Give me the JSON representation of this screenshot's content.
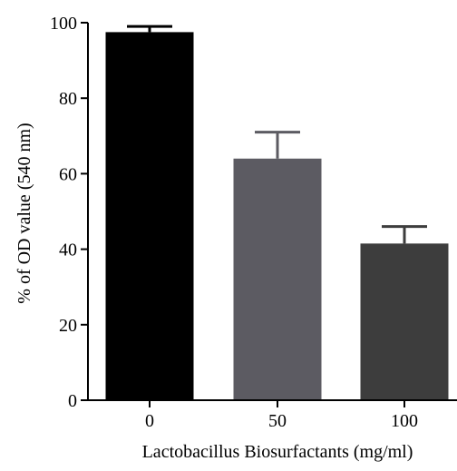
{
  "chart_data": {
    "type": "bar",
    "categories": [
      "0",
      "50",
      "100"
    ],
    "values": [
      97.5,
      64,
      41.5
    ],
    "errors": [
      1.5,
      7,
      4.5
    ],
    "xlabel": "Lactobacillus Biosurfactants (mg/ml)",
    "ylabel": "% of OD value (540 nm)",
    "ylim": [
      0,
      100
    ],
    "yticks": [
      "0",
      "20",
      "40",
      "60",
      "80",
      "100"
    ],
    "bar_colors": [
      "#000000",
      "#5c5b62",
      "#3d3d3d"
    ],
    "grid": false,
    "legend": "none"
  }
}
